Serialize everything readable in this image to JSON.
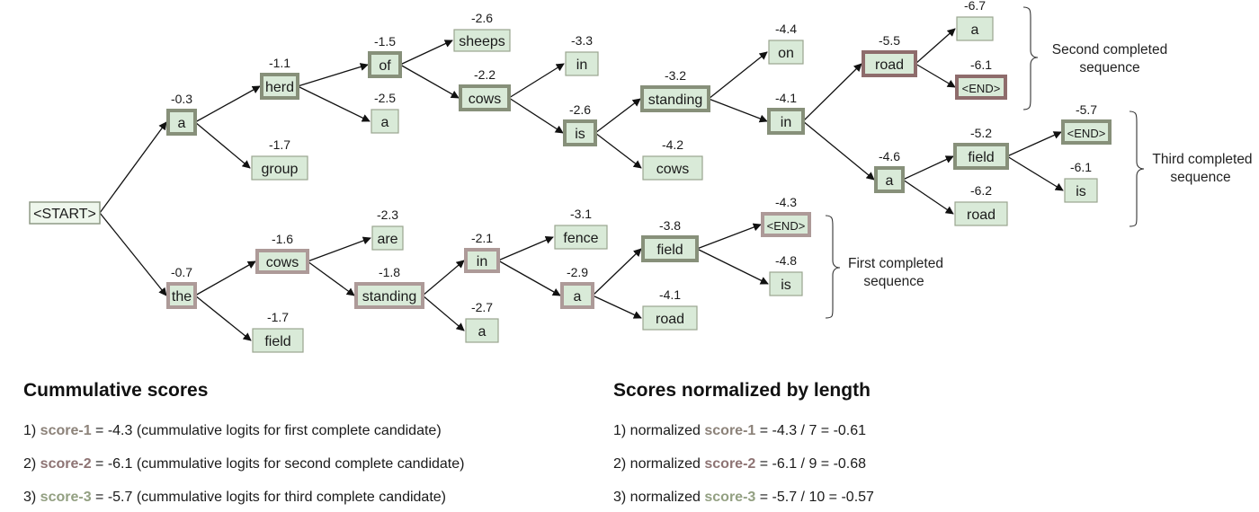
{
  "colors": {
    "node_fill": "#d9ead8",
    "beam_border": "#87907a",
    "seq1_border": "#ad9a98",
    "seq2_border": "#8e6c6c",
    "score1_color": "#8c8279",
    "score2_color": "#8e7474",
    "score3_color": "#93a082"
  },
  "nodes": {
    "start": {
      "label": "<START>",
      "score": ""
    },
    "a1": {
      "label": "a",
      "score": "-0.3"
    },
    "herd": {
      "label": "herd",
      "score": "-1.1"
    },
    "group": {
      "label": "group",
      "score": "-1.7"
    },
    "of": {
      "label": "of",
      "score": "-1.5"
    },
    "a_b": {
      "label": "a",
      "score": "-2.5"
    },
    "sheeps": {
      "label": "sheeps",
      "score": "-2.6"
    },
    "cows_top": {
      "label": "cows",
      "score": "-2.2"
    },
    "in_a": {
      "label": "in",
      "score": "-3.3"
    },
    "is_a": {
      "label": "is",
      "score": "-2.6"
    },
    "standing_top": {
      "label": "standing",
      "score": "-3.2"
    },
    "cows_mid": {
      "label": "cows",
      "score": "-4.2"
    },
    "on": {
      "label": "on",
      "score": "-4.4"
    },
    "in_b": {
      "label": "in",
      "score": "-4.1"
    },
    "road_top": {
      "label": "road",
      "score": "-5.5"
    },
    "a_far": {
      "label": "a",
      "score": "-4.6"
    },
    "a_top": {
      "label": "a",
      "score": "-6.7"
    },
    "end2": {
      "label": "<END>",
      "score": "-6.1"
    },
    "field_right": {
      "label": "field",
      "score": "-5.2"
    },
    "road_right": {
      "label": "road",
      "score": "-6.2"
    },
    "end3": {
      "label": "<END>",
      "score": "-5.7"
    },
    "is_right": {
      "label": "is",
      "score": "-6.1"
    },
    "the": {
      "label": "the",
      "score": "-0.7"
    },
    "cows_bot": {
      "label": "cows",
      "score": "-1.6"
    },
    "field_bot": {
      "label": "field",
      "score": "-1.7"
    },
    "are": {
      "label": "are",
      "score": "-2.3"
    },
    "standing_bot": {
      "label": "standing",
      "score": "-1.8"
    },
    "in_c": {
      "label": "in",
      "score": "-2.1"
    },
    "a_d": {
      "label": "a",
      "score": "-2.7"
    },
    "fence": {
      "label": "fence",
      "score": "-3.1"
    },
    "a_c": {
      "label": "a",
      "score": "-2.9"
    },
    "field_c": {
      "label": "field",
      "score": "-3.8"
    },
    "road_c": {
      "label": "road",
      "score": "-4.1"
    },
    "end1": {
      "label": "<END>",
      "score": "-4.3"
    },
    "is_c": {
      "label": "is",
      "score": "-4.8"
    }
  },
  "braces": {
    "second": [
      "Second completed",
      "sequence"
    ],
    "third": [
      "Third completed",
      "sequence"
    ],
    "first": [
      "First completed",
      "sequence"
    ]
  },
  "cumulative": {
    "title": "Cummulative scores",
    "lines": [
      {
        "prefix": "1) ",
        "kw": "score-1",
        "rest": " = -4.3 (cummulative logits for first complete candidate)"
      },
      {
        "prefix": "2) ",
        "kw": "score-2",
        "rest": " = -6.1 (cummulative logits for second complete candidate)"
      },
      {
        "prefix": "3) ",
        "kw": "score-3",
        "rest": " = -5.7 (cummulative logits for third complete candidate)"
      }
    ]
  },
  "normalized": {
    "title": "Scores normalized by length",
    "lines": [
      {
        "prefix": "1) normalized ",
        "kw": "score-1",
        "rest": " = -4.3 / 7 = -0.61"
      },
      {
        "prefix": "2) normalized ",
        "kw": "score-2",
        "rest": " = -6.1 / 9 = -0.68"
      },
      {
        "prefix": "3) normalized ",
        "kw": "score-3",
        "rest": " = -5.7 / 10 = -0.57"
      }
    ]
  }
}
